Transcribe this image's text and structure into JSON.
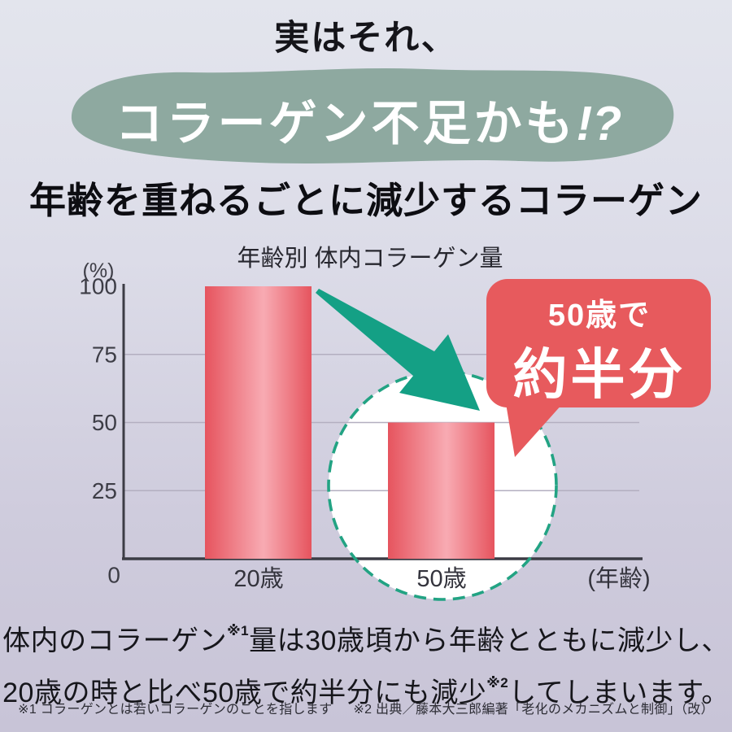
{
  "header": {
    "top_line": "実はそれ、",
    "bubble_main": "コラーゲン不足かも",
    "bubble_bang": "!?",
    "section_heading": "年齢を重ねるごとに減少するコラーゲン"
  },
  "chart_data": {
    "type": "bar",
    "title": "年齢別 体内コラーゲン量",
    "unit_label": "(%)",
    "categories": [
      "20歳",
      "50歳"
    ],
    "values": [
      100,
      50
    ],
    "yticks": [
      100,
      75,
      50,
      25,
      0
    ],
    "xlabel": "(年齢)",
    "ylabel": "(%)",
    "ylim": [
      0,
      105
    ],
    "grid": true,
    "legend": "none",
    "annotation": {
      "line1": "50歳で",
      "line2": "約半分"
    },
    "highlighted_category": "50歳"
  },
  "body": {
    "line1_pre": "体内のコラーゲン",
    "line1_sup": "※1",
    "line1_post": "量は30歳頃から年齢とともに減少し、",
    "line2_pre": "20歳の時と比べ50歳で約半分にも減少",
    "line2_sup": "※2",
    "line2_post": "してしまいます。"
  },
  "footnotes": {
    "note1": "※1 コラーゲンとは若いコラーゲンのことを指します",
    "note2": "※2 出典／藤本大三郎編著「老化のメカニズムと制御」（改）"
  },
  "colors": {
    "background_top": "#e3e5ed",
    "background_bottom": "#c8c4d7",
    "blob_green": "#8ea9a0",
    "bar_edge": "#e6545e",
    "bar_center": "#f8abb3",
    "arrow_teal": "#14a085",
    "circle_teal": "#22a383",
    "bubble_red": "#e75a5d",
    "axis": "#3c3c45",
    "gridline": "#b3afc0"
  }
}
